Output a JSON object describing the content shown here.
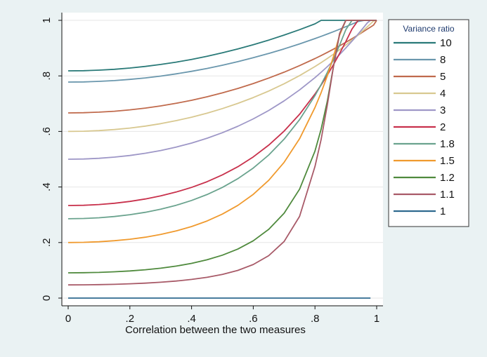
{
  "chart_data": {
    "type": "line",
    "title": "",
    "xlabel": "Correlation between the two measures",
    "ylabel": "",
    "xlim": [
      0,
      1
    ],
    "ylim": [
      0,
      1
    ],
    "x_ticks": [
      0,
      0.2,
      0.4,
      0.6,
      0.8,
      1
    ],
    "x_tick_labels": [
      "0",
      ".2",
      ".4",
      ".6",
      ".8",
      "1"
    ],
    "y_ticks": [
      0,
      0.2,
      0.4,
      0.6,
      0.8,
      1
    ],
    "y_tick_labels": [
      "0",
      ".2",
      ".4",
      ".6",
      ".8",
      "1"
    ],
    "grid": "horizontal",
    "legend": {
      "title": "Variance ratio",
      "placement": "right"
    },
    "x": [
      0,
      0.05,
      0.1,
      0.15,
      0.2,
      0.25,
      0.3,
      0.35,
      0.4,
      0.45,
      0.5,
      0.55,
      0.6,
      0.65,
      0.7,
      0.75,
      0.8,
      0.82,
      0.84,
      0.86,
      0.88,
      0.9,
      0.92,
      0.94,
      0.96,
      0.97,
      0.98,
      0.99,
      1
    ],
    "series": [
      {
        "name": "10",
        "color": "#2a7a78",
        "values": [
          0.8182,
          0.8188,
          0.8207,
          0.8238,
          0.8283,
          0.834,
          0.8411,
          0.8496,
          0.8594,
          0.8705,
          0.8831,
          0.897,
          0.9123,
          0.9289,
          0.947,
          0.9664,
          0.9873,
          1,
          1,
          1,
          1,
          1,
          1,
          1,
          1,
          1,
          1,
          1,
          1
        ],
        "values_note": "approximate"
      },
      {
        "name": "8",
        "color": "#6a97ad",
        "values": [
          0.7778,
          0.7784,
          0.7802,
          0.7831,
          0.7873,
          0.7927,
          0.7993,
          0.8072,
          0.8163,
          0.8267,
          0.8383,
          0.8512,
          0.8653,
          0.8807,
          0.8973,
          0.9152,
          0.9343,
          0.9424,
          0.9507,
          0.9592,
          0.968,
          0.9771,
          0.9864,
          0.9959,
          1,
          1,
          1,
          1,
          1
        ]
      },
      {
        "name": "5",
        "color": "#c06a4c",
        "values": [
          0.6667,
          0.6674,
          0.6694,
          0.6728,
          0.6777,
          0.684,
          0.6918,
          0.7012,
          0.7121,
          0.7247,
          0.7389,
          0.7548,
          0.7725,
          0.7921,
          0.8135,
          0.8369,
          0.8624,
          0.8733,
          0.8846,
          0.8963,
          0.9084,
          0.921,
          0.934,
          0.9475,
          0.9614,
          0.9686,
          0.9758,
          0.9832,
          1
        ]
      },
      {
        "name": "4",
        "color": "#d8c890",
        "values": [
          0.6,
          0.6008,
          0.603,
          0.6068,
          0.6122,
          0.6193,
          0.6281,
          0.6388,
          0.6512,
          0.6657,
          0.6822,
          0.7009,
          0.7219,
          0.7455,
          0.7718,
          0.8011,
          0.8337,
          0.8478,
          0.8626,
          0.878,
          0.8942,
          0.9111,
          0.9289,
          0.9475,
          0.967,
          0.977,
          0.9873,
          0.9977,
          1
        ]
      },
      {
        "name": "3",
        "color": "#9e97c7",
        "values": [
          0.5,
          0.5008,
          0.5033,
          0.5075,
          0.5135,
          0.5214,
          0.5314,
          0.5436,
          0.5582,
          0.5754,
          0.5954,
          0.6186,
          0.6452,
          0.6756,
          0.7102,
          0.7494,
          0.7937,
          0.8131,
          0.8334,
          0.8547,
          0.8771,
          0.9005,
          0.925,
          0.9507,
          0.9774,
          0.9911,
          1,
          1,
          1
        ]
      },
      {
        "name": "2",
        "color": "#c8314c",
        "values": [
          0.3333,
          0.3342,
          0.3369,
          0.3415,
          0.348,
          0.3567,
          0.3679,
          0.3817,
          0.3986,
          0.419,
          0.4436,
          0.4731,
          0.5084,
          0.5507,
          0.6013,
          0.6619,
          0.7347,
          0.7675,
          0.8028,
          0.8405,
          0.8808,
          0.9236,
          0.9688,
          1,
          1,
          1,
          1,
          1,
          1
        ]
      },
      {
        "name": "1.8",
        "color": "#6aa38e",
        "values": [
          0.2857,
          0.2866,
          0.2892,
          0.2937,
          0.3002,
          0.3089,
          0.3201,
          0.3341,
          0.3515,
          0.3727,
          0.3986,
          0.43,
          0.4683,
          0.5151,
          0.5722,
          0.6424,
          0.729,
          0.7689,
          0.8124,
          0.8597,
          0.911,
          0.9664,
          1,
          1,
          1,
          1,
          1,
          1,
          1
        ]
      },
      {
        "name": "1.5",
        "color": "#f09a2e",
        "values": [
          0.2,
          0.2007,
          0.2028,
          0.2065,
          0.2119,
          0.2193,
          0.2291,
          0.2417,
          0.2576,
          0.2775,
          0.3025,
          0.3339,
          0.3735,
          0.4239,
          0.4889,
          0.5737,
          0.686,
          0.7399,
          0.8008,
          0.8696,
          0.947,
          1,
          1,
          1,
          1,
          1,
          1,
          1,
          1
        ]
      },
      {
        "name": "1.2",
        "color": "#4f8a3d",
        "values": [
          0.0909,
          0.0913,
          0.0925,
          0.0946,
          0.0977,
          0.102,
          0.1077,
          0.1152,
          0.125,
          0.1378,
          0.1545,
          0.1766,
          0.2064,
          0.2474,
          0.3056,
          0.3922,
          0.5294,
          0.6087,
          0.7094,
          0.8333,
          0.9524,
          1,
          1,
          1,
          1,
          1,
          1,
          1,
          1
        ]
      },
      {
        "name": "1.1",
        "color": "#a85a68",
        "values": [
          0.0476,
          0.0478,
          0.0485,
          0.0496,
          0.0514,
          0.0538,
          0.057,
          0.0613,
          0.0671,
          0.0748,
          0.0852,
          0.0998,
          0.1209,
          0.1527,
          0.2037,
          0.2941,
          0.4737,
          0.5714,
          0.6957,
          0.8333,
          0.9524,
          1,
          1,
          1,
          1,
          1,
          1,
          1,
          1
        ]
      },
      {
        "name": "1",
        "color": "#2e6a8f",
        "values": [
          0,
          0,
          0,
          0,
          0,
          0,
          0,
          0,
          0,
          0,
          0,
          0,
          0,
          0,
          0,
          0,
          0,
          0,
          0,
          0,
          0,
          0,
          0,
          0,
          0,
          0,
          0,
          0,
          0
        ]
      }
    ]
  }
}
